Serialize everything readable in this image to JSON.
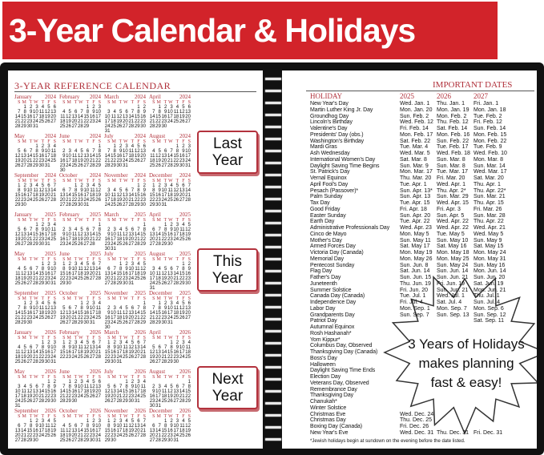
{
  "banner": {
    "title": "3-Year Calendar & Holidays",
    "color": "#d2232a"
  },
  "calendar": {
    "title": "3-YEAR REFERENCE CALENDAR",
    "years": [
      2024,
      2025,
      2026
    ],
    "weekdays": [
      "S",
      "M",
      "T",
      "W",
      "T",
      "F",
      "S"
    ],
    "months": [
      "January",
      "February",
      "March",
      "April",
      "May",
      "June",
      "July",
      "August",
      "September",
      "October",
      "November",
      "December"
    ],
    "accent": "#b0303a"
  },
  "callouts": [
    "Last Year",
    "This Year",
    "Next Year"
  ],
  "holidays": {
    "title": "IMPORTANT DATES",
    "headers": [
      "HOLIDAY",
      "2025",
      "2026",
      "2027"
    ],
    "rows": [
      [
        "New Year's Day",
        "Wed. Jan. 1",
        "Thu. Jan. 1",
        "Fri. Jan. 1"
      ],
      [
        "Martin Luther King Jr. Day",
        "Mon. Jan. 20",
        "Mon. Jan. 19",
        "Mon. Jan. 18"
      ],
      [
        "Groundhog Day",
        "Sun. Feb. 2",
        "Mon. Feb. 2",
        "Tue. Feb. 2"
      ],
      [
        "Lincoln's Birthday",
        "Wed. Feb. 12",
        "Thu. Feb. 12",
        "Fri. Feb. 12"
      ],
      [
        "Valentine's Day",
        "Fri. Feb. 14",
        "Sat. Feb. 14",
        "Sun. Feb. 14"
      ],
      [
        "Presidents' Day (obs.)",
        "Mon. Feb. 17",
        "Mon. Feb. 16",
        "Mon. Feb. 15"
      ],
      [
        "Washington's Birthday",
        "Sat. Feb. 22",
        "Sun. Feb. 22",
        "Mon. Feb. 22"
      ],
      [
        "Mardi Gras",
        "Tue. Mar. 4",
        "Tue. Feb. 17",
        "Tue. Feb. 9"
      ],
      [
        "Ash Wednesday",
        "Wed. Mar. 5",
        "Wed. Feb. 18",
        "Wed. Feb. 10"
      ],
      [
        "International Women's Day",
        "Sat. Mar. 8",
        "Sun. Mar. 8",
        "Mon. Mar. 8"
      ],
      [
        "Daylight Saving Time Begins",
        "Sun. Mar. 9",
        "Sun. Mar. 8",
        "Sun. Mar. 14"
      ],
      [
        "St. Patrick's Day",
        "Mon. Mar. 17",
        "Tue. Mar. 17",
        "Wed. Mar. 17"
      ],
      [
        "Vernal Equinox",
        "Thu. Mar. 20",
        "Fri. Mar. 20",
        "Sat. Mar. 20"
      ],
      [
        "April Fool's Day",
        "Tue. Apr. 1",
        "Wed. Apr. 1",
        "Thu. Apr. 1"
      ],
      [
        "Pesach (Passover)*",
        "Sun. Apr. 13*",
        "Thu. Apr. 2*",
        "Thu. Apr. 22*"
      ],
      [
        "Palm Sunday",
        "Sun. Apr. 13",
        "Sun. Mar. 29",
        "Sun. Mar. 21"
      ],
      [
        "Tax Day",
        "Tue. Apr. 15",
        "Wed. Apr. 15",
        "Thu. Apr. 15"
      ],
      [
        "Good Friday",
        "Fri. Apr. 18",
        "Fri. Apr. 3",
        "Fri. Mar. 26"
      ],
      [
        "Easter Sunday",
        "Sun. Apr. 20",
        "Sun. Apr. 5",
        "Sun. Mar. 28"
      ],
      [
        "Earth Day",
        "Tue. Apr. 22",
        "Wed. Apr. 22",
        "Thu. Apr. 22"
      ],
      [
        "Administrative Professionals Day",
        "Wed. Apr. 23",
        "Wed. Apr. 22",
        "Wed. Apr. 21"
      ],
      [
        "Cinco de Mayo",
        "Mon. May 5",
        "Tue. May 5",
        "Wed. May 5"
      ],
      [
        "Mother's Day",
        "Sun. May 11",
        "Sun. May 10",
        "Sun. May 9"
      ],
      [
        "Armed Forces Day",
        "Sat. May 17",
        "Sat. May 16",
        "Sat. May 15"
      ],
      [
        "Victoria Day (Canada)",
        "Mon. May 19",
        "Mon. May 18",
        "Mon. May 24"
      ],
      [
        "Memorial Day",
        "Mon. May 26",
        "Mon. May 25",
        "Mon. May 31"
      ],
      [
        "Pentecost Sunday",
        "Sun. Jun. 8",
        "Sun. May 24",
        "Sun. May 16"
      ],
      [
        "Flag Day",
        "Sat. Jun. 14",
        "Sun. Jun. 14",
        "Mon. Jun. 14"
      ],
      [
        "Father's Day",
        "Sun. Jun. 15",
        "Sun. Jun. 21",
        "Sun. Jun. 20"
      ],
      [
        "Juneteenth",
        "Thu. Jun. 19",
        "Fri. Jun. 19",
        "Sat. Jun. 19"
      ],
      [
        "Summer Solstice",
        "Fri. Jun. 20",
        "Sun. Jun. 21",
        "Mon. Jun. 21"
      ],
      [
        "Canada Day (Canada)",
        "Tue. Jul. 1",
        "Wed. Jul. 1",
        "Thu. Jul. 1"
      ],
      [
        "Independence Day",
        "Fri. Jul. 4",
        "Sat. Jul. 4",
        "Sun. Jul. 4"
      ],
      [
        "Labor Day",
        "Mon. Sep. 1",
        "Mon. Sep. 7",
        "Mon. Sep. 6"
      ],
      [
        "Grandparents Day",
        "Sun. Sep. 7",
        "Sun. Sep. 13",
        "Sun. Sep. 12"
      ],
      [
        "Patriot Day",
        "",
        "",
        "Sat. Sep. 11"
      ],
      [
        "Autumnal Equinox",
        "",
        "",
        ""
      ],
      [
        "Rosh Hashanah*",
        "",
        "",
        ""
      ],
      [
        "Yom Kippur*",
        "",
        "",
        ""
      ],
      [
        "Columbus Day, Observed",
        "",
        "",
        ""
      ],
      [
        "Thanksgiving Day (Canada)",
        "",
        "",
        ""
      ],
      [
        "Boss's Day",
        "",
        "",
        ""
      ],
      [
        "Halloween",
        "",
        "",
        ""
      ],
      [
        "Daylight Saving Time Ends",
        "",
        "",
        ""
      ],
      [
        "Election Day",
        "",
        "",
        ""
      ],
      [
        "Veterans Day, Observed",
        "",
        "",
        ""
      ],
      [
        "Remembrance Day",
        "",
        "",
        ""
      ],
      [
        "Thanksgiving Day",
        "",
        "",
        ""
      ],
      [
        "Chanukah*",
        "",
        "",
        ""
      ],
      [
        "Winter Solstice",
        "",
        "",
        ""
      ],
      [
        "Christmas Eve",
        "Wed. Dec. 24",
        "",
        ""
      ],
      [
        "Christmas Day",
        "Thu. Dec. 25",
        "",
        ""
      ],
      [
        "Boxing Day (Canada)",
        "Fri. Dec. 26",
        "",
        ""
      ],
      [
        "New Year's Eve",
        "Wed. Dec. 31",
        "Thu. Dec. 31",
        "Fri. Dec. 31"
      ]
    ],
    "footnote": "*Jewish holidays begin at sundown on the evening before the date listed."
  },
  "starburst": {
    "lines": [
      "3 Years of Holidays",
      "makes planning",
      "fast & easy!"
    ]
  }
}
